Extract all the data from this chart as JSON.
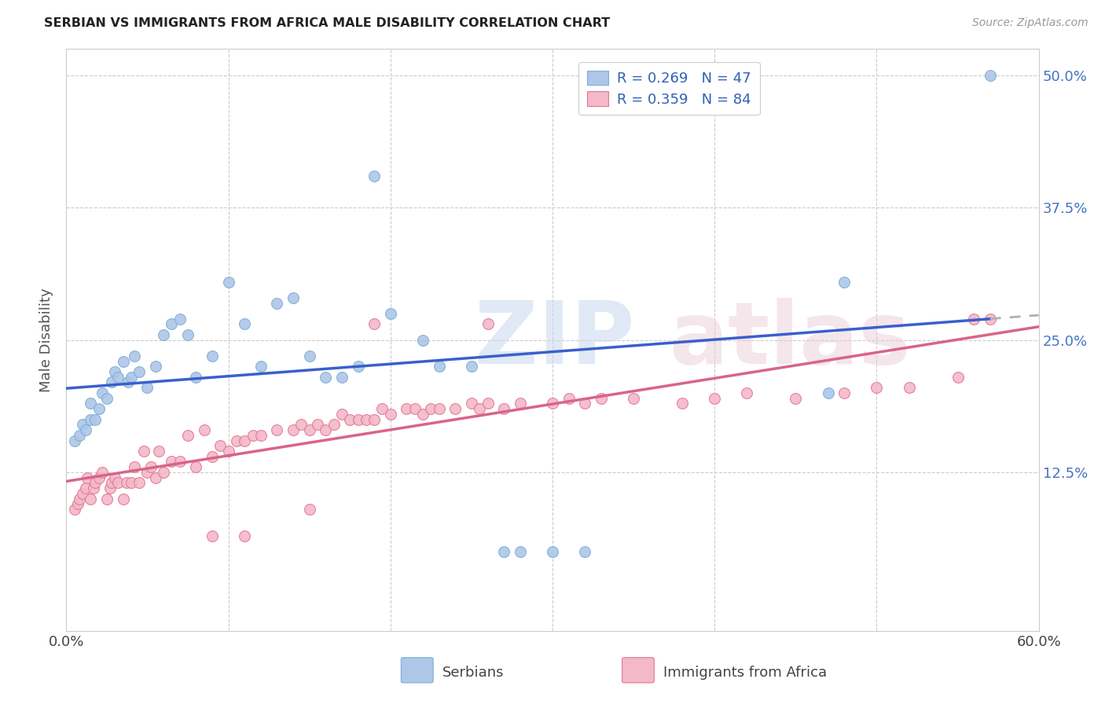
{
  "title": "SERBIAN VS IMMIGRANTS FROM AFRICA MALE DISABILITY CORRELATION CHART",
  "source": "Source: ZipAtlas.com",
  "ylabel": "Male Disability",
  "xlim": [
    0.0,
    0.6
  ],
  "ylim": [
    -0.025,
    0.525
  ],
  "serbian_color": "#aec6e8",
  "serbian_edge": "#7bafd4",
  "africa_color": "#f4b8c8",
  "africa_edge": "#e07898",
  "trend_serbian_color": "#3a5fcd",
  "trend_africa_color": "#d9648a",
  "trend_ext_color": "#b0b0b0",
  "R_serbian": 0.269,
  "N_serbian": 47,
  "R_africa": 0.359,
  "N_africa": 84,
  "legend_color": "#3060b8",
  "legend_n_color": "#3060b8",
  "serbian_x": [
    0.005,
    0.008,
    0.01,
    0.012,
    0.015,
    0.015,
    0.018,
    0.02,
    0.022,
    0.025,
    0.028,
    0.03,
    0.032,
    0.035,
    0.038,
    0.04,
    0.042,
    0.045,
    0.05,
    0.055,
    0.06,
    0.065,
    0.07,
    0.075,
    0.08,
    0.09,
    0.1,
    0.11,
    0.12,
    0.13,
    0.14,
    0.15,
    0.16,
    0.17,
    0.18,
    0.19,
    0.2,
    0.22,
    0.23,
    0.25,
    0.27,
    0.28,
    0.3,
    0.32,
    0.47,
    0.48,
    0.57
  ],
  "serbian_y": [
    0.155,
    0.16,
    0.17,
    0.165,
    0.175,
    0.19,
    0.175,
    0.185,
    0.2,
    0.195,
    0.21,
    0.22,
    0.215,
    0.23,
    0.21,
    0.215,
    0.235,
    0.22,
    0.205,
    0.225,
    0.255,
    0.265,
    0.27,
    0.255,
    0.215,
    0.235,
    0.305,
    0.265,
    0.225,
    0.285,
    0.29,
    0.235,
    0.215,
    0.215,
    0.225,
    0.405,
    0.275,
    0.25,
    0.225,
    0.225,
    0.05,
    0.05,
    0.05,
    0.05,
    0.2,
    0.305,
    0.5
  ],
  "africa_x": [
    0.005,
    0.007,
    0.008,
    0.01,
    0.012,
    0.013,
    0.015,
    0.017,
    0.018,
    0.02,
    0.022,
    0.025,
    0.027,
    0.028,
    0.03,
    0.032,
    0.035,
    0.037,
    0.04,
    0.042,
    0.045,
    0.048,
    0.05,
    0.052,
    0.055,
    0.057,
    0.06,
    0.065,
    0.07,
    0.075,
    0.08,
    0.085,
    0.09,
    0.095,
    0.1,
    0.105,
    0.11,
    0.115,
    0.12,
    0.13,
    0.14,
    0.145,
    0.15,
    0.155,
    0.16,
    0.165,
    0.17,
    0.175,
    0.18,
    0.185,
    0.19,
    0.195,
    0.2,
    0.21,
    0.215,
    0.22,
    0.225,
    0.23,
    0.24,
    0.25,
    0.255,
    0.26,
    0.27,
    0.28,
    0.3,
    0.31,
    0.32,
    0.33,
    0.35,
    0.38,
    0.4,
    0.42,
    0.45,
    0.48,
    0.5,
    0.52,
    0.55,
    0.57,
    0.19,
    0.26,
    0.15,
    0.11,
    0.09,
    0.56
  ],
  "africa_y": [
    0.09,
    0.095,
    0.1,
    0.105,
    0.11,
    0.12,
    0.1,
    0.11,
    0.115,
    0.12,
    0.125,
    0.1,
    0.11,
    0.115,
    0.12,
    0.115,
    0.1,
    0.115,
    0.115,
    0.13,
    0.115,
    0.145,
    0.125,
    0.13,
    0.12,
    0.145,
    0.125,
    0.135,
    0.135,
    0.16,
    0.13,
    0.165,
    0.14,
    0.15,
    0.145,
    0.155,
    0.155,
    0.16,
    0.16,
    0.165,
    0.165,
    0.17,
    0.165,
    0.17,
    0.165,
    0.17,
    0.18,
    0.175,
    0.175,
    0.175,
    0.175,
    0.185,
    0.18,
    0.185,
    0.185,
    0.18,
    0.185,
    0.185,
    0.185,
    0.19,
    0.185,
    0.19,
    0.185,
    0.19,
    0.19,
    0.195,
    0.19,
    0.195,
    0.195,
    0.19,
    0.195,
    0.2,
    0.195,
    0.2,
    0.205,
    0.205,
    0.215,
    0.27,
    0.265,
    0.265,
    0.09,
    0.065,
    0.065,
    0.27
  ]
}
